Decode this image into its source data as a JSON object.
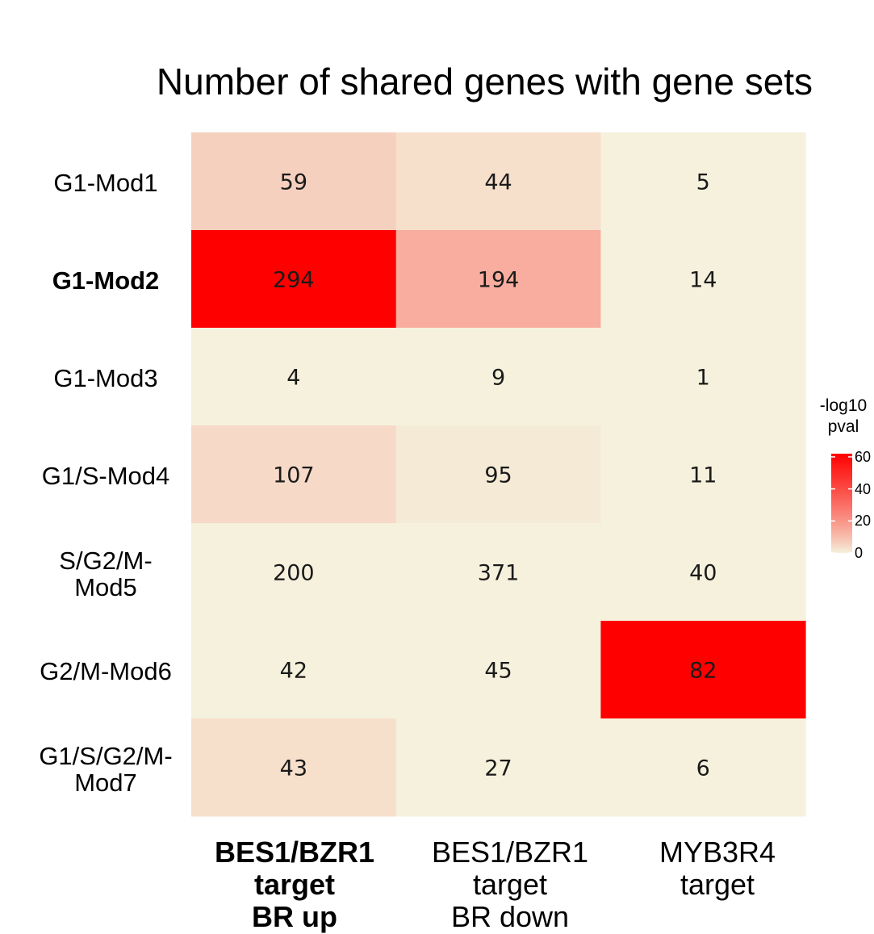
{
  "chart_data": {
    "type": "heatmap",
    "title": "Number of shared genes with gene sets",
    "rows": [
      "G1-Mod1",
      "G1-Mod2",
      "G1-Mod3",
      "G1/S-Mod4",
      "S/G2/M-Mod5",
      "G2/M-Mod6",
      "G1/S/G2/M-Mod7"
    ],
    "row_label_lines": [
      [
        "G1-Mod1"
      ],
      [
        "G1-Mod2"
      ],
      [
        "G1-Mod3"
      ],
      [
        "G1/S-Mod4"
      ],
      [
        "S/G2/M-",
        "Mod5"
      ],
      [
        "G2/M-Mod6"
      ],
      [
        "G1/S/G2/M-",
        "Mod7"
      ]
    ],
    "bold_rows": [
      "G1-Mod2"
    ],
    "columns": [
      {
        "lines": [
          "BES1/BZR1",
          "target",
          "BR up"
        ],
        "bold": true
      },
      {
        "lines": [
          "BES1/BZR1",
          "target",
          "BR down"
        ],
        "bold": false
      },
      {
        "lines": [
          "MYB3R4",
          "target"
        ],
        "bold": false
      }
    ],
    "counts": [
      [
        59,
        44,
        5
      ],
      [
        294,
        194,
        14
      ],
      [
        4,
        9,
        1
      ],
      [
        107,
        95,
        11
      ],
      [
        200,
        371,
        40
      ],
      [
        42,
        45,
        82
      ],
      [
        43,
        27,
        6
      ]
    ],
    "neg_log10_pval": [
      [
        6,
        3,
        0
      ],
      [
        62,
        14,
        0
      ],
      [
        0,
        0,
        0
      ],
      [
        4,
        1,
        0
      ],
      [
        0,
        0,
        0
      ],
      [
        0,
        0,
        62
      ],
      [
        3,
        0,
        0
      ]
    ],
    "legend": {
      "title_lines": [
        "-log10",
        "pval"
      ],
      "ticks": [
        60,
        40,
        20,
        0
      ],
      "range": [
        0,
        62
      ],
      "low_color": "#f5f1dc",
      "high_color": "#ff0000"
    }
  }
}
